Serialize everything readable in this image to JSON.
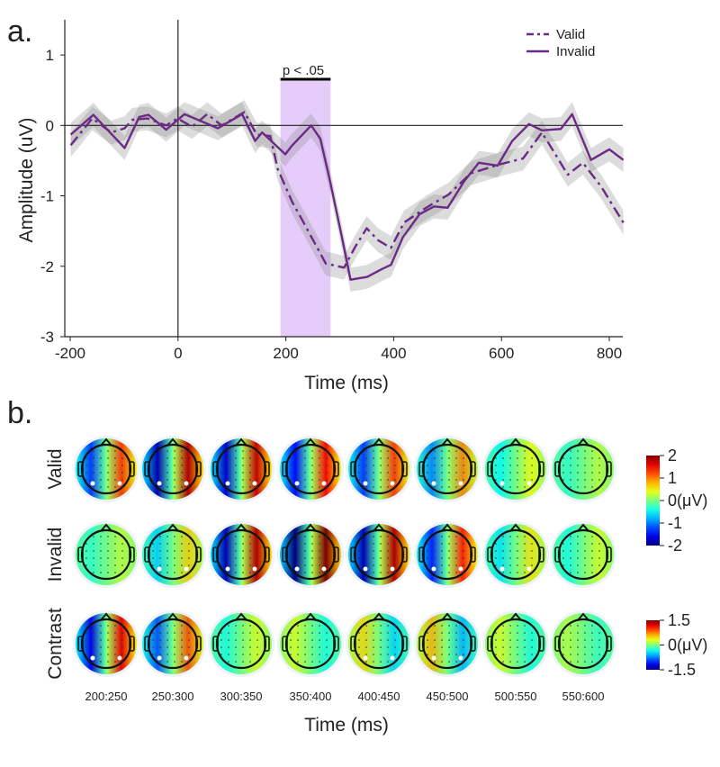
{
  "panel_a_label": "a.",
  "panel_b_label": "b.",
  "chart_data": [
    {
      "type": "line",
      "title": "",
      "xlabel": "Time (ms)",
      "ylabel": "Amplitude (uV)",
      "xlim": [
        -210,
        825
      ],
      "ylim": [
        -3,
        1.5
      ],
      "xticks": [
        -200,
        0,
        200,
        400,
        600,
        800
      ],
      "xtick_labels": [
        "-200",
        "0",
        "200",
        "400",
        "600",
        "800"
      ],
      "yticks": [
        1,
        0,
        -1,
        -2,
        -3
      ],
      "ytick_labels": [
        "1",
        "0",
        "-1",
        "-2",
        "-3"
      ],
      "legend_position": "top-right",
      "significance": {
        "label": "p < .05",
        "x_start": 190,
        "x_end": 283,
        "color": "#e6ccfa"
      },
      "line_color": "#6b2a86",
      "ci_halfwidth": 0.17,
      "series": [
        {
          "name": "Valid",
          "style": "dash-dot",
          "x": [
            -199,
            -159,
            -124,
            -99,
            -85,
            -57,
            -22,
            -1,
            26,
            54,
            81,
            123,
            146,
            171,
            185,
            212,
            233,
            274,
            308,
            329,
            350,
            371,
            395,
            419,
            460,
            502,
            543,
            598,
            640,
            675,
            696,
            723,
            751,
            785,
            826
          ],
          "y": [
            -0.28,
            0.1,
            -0.1,
            -0.04,
            0.08,
            0.1,
            0,
            0.1,
            -0.02,
            0.16,
            0,
            0.19,
            -0.13,
            -0.15,
            -0.62,
            -1.09,
            -1.38,
            -1.96,
            -2.02,
            -1.72,
            -1.46,
            -1.63,
            -1.74,
            -1.38,
            -1.17,
            -0.98,
            -0.68,
            -0.55,
            -0.47,
            -0.1,
            -0.36,
            -0.7,
            -0.53,
            -0.87,
            -1.38
          ]
        },
        {
          "name": "Invalid",
          "style": "solid",
          "x": [
            -199,
            -157,
            -99,
            -72,
            -55,
            -22,
            12,
            74,
            119,
            143,
            156,
            199,
            211,
            247,
            264,
            282,
            303,
            320,
            351,
            378,
            395,
            417,
            448,
            475,
            500,
            531,
            558,
            593,
            620,
            651,
            675,
            710,
            731,
            766,
            800,
            826
          ],
          "y": [
            -0.13,
            0.15,
            -0.32,
            0.12,
            0.15,
            -0.06,
            0.16,
            -0.04,
            0.16,
            -0.22,
            -0.1,
            -0.41,
            -0.29,
            0,
            -0.19,
            -0.79,
            -1.55,
            -2.19,
            -2.15,
            -2.04,
            -1.98,
            -1.59,
            -1.26,
            -1.15,
            -1.17,
            -0.79,
            -0.53,
            -0.57,
            -0.22,
            0.02,
            -0.07,
            -0.05,
            0.16,
            -0.49,
            -0.34,
            -0.49
          ]
        }
      ]
    },
    {
      "type": "heatmap",
      "xlabel": "Time (ms)",
      "time_windows": [
        "200:250",
        "250:300",
        "300:350",
        "350:400",
        "400:450",
        "450:500",
        "500:550",
        "550:600"
      ],
      "rows": [
        {
          "name": "Valid",
          "posterior_lateralization_uV": [
            1.3,
            1.8,
            1.7,
            1.5,
            1.3,
            1.0,
            0.5,
            0.3
          ],
          "colorbar": "a"
        },
        {
          "name": "Invalid",
          "posterior_lateralization_uV": [
            0.3,
            0.7,
            1.8,
            2.0,
            1.8,
            1.4,
            0.6,
            0.4
          ],
          "colorbar": "a"
        },
        {
          "name": "Contrast",
          "posterior_lateralization_uV": [
            1.2,
            0.9,
            0.3,
            -0.3,
            -0.5,
            -0.6,
            -0.3,
            -0.2
          ],
          "colorbar": "b"
        }
      ],
      "colorbars": {
        "a": {
          "range": [
            -2,
            2
          ],
          "tick_labels": [
            "2",
            "1",
            "0(μV)",
            "-1",
            "-2"
          ]
        },
        "b": {
          "range": [
            -1.5,
            1.5
          ],
          "tick_labels": [
            "1.5",
            "0(μV)",
            "-1.5"
          ]
        }
      }
    }
  ]
}
